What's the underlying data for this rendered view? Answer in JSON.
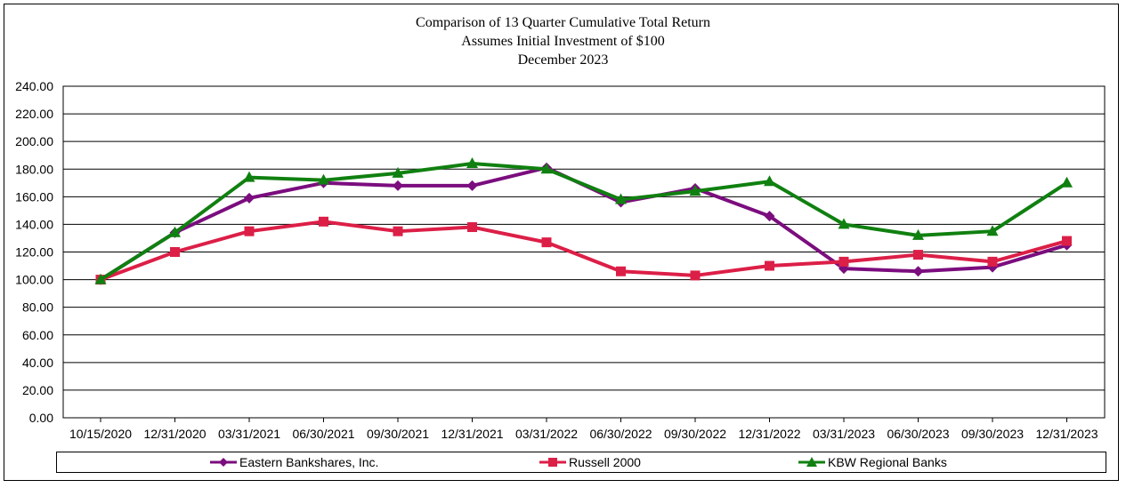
{
  "chart_data": {
    "type": "line",
    "title": "Comparison of 13 Quarter Cumulative Total Return",
    "subtitle": [
      "Assumes Initial Investment of $100",
      "December 2023"
    ],
    "xlabel": "",
    "ylabel": "",
    "ylim": [
      0,
      240
    ],
    "yticks": [
      "0.00",
      "20.00",
      "40.00",
      "60.00",
      "80.00",
      "100.00",
      "120.00",
      "140.00",
      "160.00",
      "180.00",
      "200.00",
      "220.00",
      "240.00"
    ],
    "grid": true,
    "legend_position": "bottom",
    "categories": [
      "10/15/2020",
      "12/31/2020",
      "03/31/2021",
      "06/30/2021",
      "09/30/2021",
      "12/31/2021",
      "03/31/2022",
      "06/30/2022",
      "09/30/2022",
      "12/31/2022",
      "03/31/2023",
      "06/30/2023",
      "09/30/2023",
      "12/31/2023"
    ],
    "series": [
      {
        "name": "Eastern Bankshares, Inc.",
        "color": "#7b0d7e",
        "marker": "diamond",
        "values": [
          100,
          134,
          159,
          170,
          168,
          168,
          181,
          156,
          166,
          146,
          108,
          106,
          109,
          125
        ]
      },
      {
        "name": "Russell 2000",
        "color": "#dc1f47",
        "marker": "square",
        "values": [
          100,
          120,
          135,
          142,
          135,
          138,
          127,
          106,
          103,
          110,
          113,
          118,
          113,
          128
        ]
      },
      {
        "name": "KBW Regional Banks",
        "color": "#108010",
        "marker": "triangle",
        "values": [
          100,
          134,
          174,
          172,
          177,
          184,
          180,
          158,
          164,
          171,
          140,
          132,
          135,
          170
        ]
      }
    ]
  }
}
